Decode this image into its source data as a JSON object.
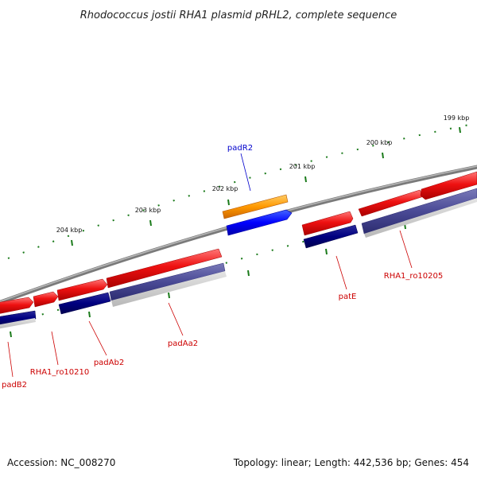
{
  "header": {
    "title": "Rhodococcus jostii RHA1 plasmid pRHL2, complete sequence"
  },
  "footer": {
    "accession": "Accession: NC_008270",
    "summary": "Topology: linear; Length: 442,536 bp; Genes: 454"
  },
  "ruler": {
    "ticks": [
      "204 kbp",
      "203 kbp",
      "202 kbp",
      "201 kbp",
      "200 kbp",
      "199 kbp"
    ]
  },
  "genes": [
    {
      "name": "padR2",
      "color": "#0000cc"
    },
    {
      "name": "patE",
      "color": "#cc0000"
    },
    {
      "name": "RHA1_ro10205",
      "color": "#cc0000"
    },
    {
      "name": "padAa2",
      "color": "#cc0000"
    },
    {
      "name": "padAb2",
      "color": "#cc0000"
    },
    {
      "name": "RHA1_ro10210",
      "color": "#cc0000"
    },
    {
      "name": "padB2",
      "color": "#cc0000"
    }
  ],
  "colors": {
    "backbone": "#7a7a7a",
    "tick": "#1a7a1a",
    "forward_gene": "#ee1111",
    "reverse_cds": "#000080",
    "reverse_cds_alt": "#4a4a96",
    "regulator_gene": "#ff8c00",
    "regulator_cds": "#0000ff"
  }
}
